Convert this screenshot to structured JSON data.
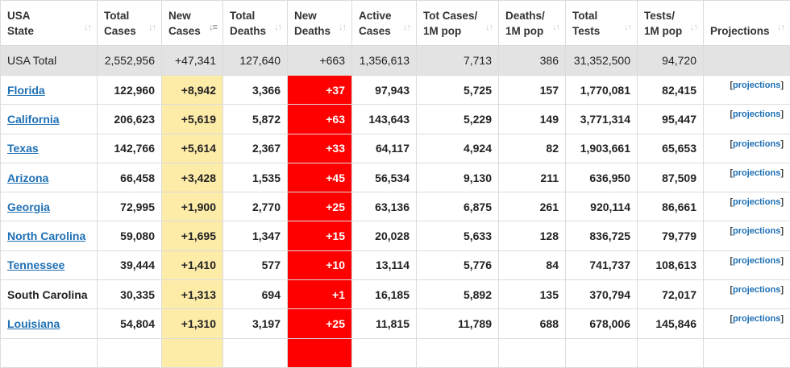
{
  "headers": [
    {
      "line1": "USA",
      "line2": "State",
      "sort": "↓↑",
      "active": false
    },
    {
      "line1": "Total",
      "line2": "Cases",
      "sort": "↓↑",
      "active": false
    },
    {
      "line1": "New",
      "line2": "Cases",
      "sort": "↓≡",
      "active": true
    },
    {
      "line1": "Total",
      "line2": "Deaths",
      "sort": "↓↑",
      "active": false
    },
    {
      "line1": "New",
      "line2": "Deaths",
      "sort": "↓↑",
      "active": false
    },
    {
      "line1": "Active",
      "line2": "Cases",
      "sort": "↓↑",
      "active": false
    },
    {
      "line1": "Tot Cases/",
      "line2": "1M pop",
      "sort": "↓↑",
      "active": false
    },
    {
      "line1": "Deaths/",
      "line2": "1M pop",
      "sort": "↓↑",
      "active": false
    },
    {
      "line1": "Total",
      "line2": "Tests",
      "sort": "↓↑",
      "active": false
    },
    {
      "line1": "Tests/",
      "line2": "1M pop",
      "sort": "↓↑",
      "active": false
    },
    {
      "line1": "",
      "line2": "Projections",
      "sort": "↓↑",
      "active": false
    }
  ],
  "total": {
    "state": "USA Total",
    "total_cases": "2,552,956",
    "new_cases": "+47,341",
    "total_deaths": "127,640",
    "new_deaths": "+663",
    "active_cases": "1,356,613",
    "cases_per_1m": "7,713",
    "deaths_per_1m": "386",
    "total_tests": "31,352,500",
    "tests_per_1m": "94,720"
  },
  "rows": [
    {
      "state": "Florida",
      "link": true,
      "total_cases": "122,960",
      "new_cases": "+8,942",
      "total_deaths": "3,366",
      "new_deaths": "+37",
      "active_cases": "97,943",
      "cases_per_1m": "5,725",
      "deaths_per_1m": "157",
      "total_tests": "1,770,081",
      "tests_per_1m": "82,415",
      "proj": "projections"
    },
    {
      "state": "California",
      "link": true,
      "total_cases": "206,623",
      "new_cases": "+5,619",
      "total_deaths": "5,872",
      "new_deaths": "+63",
      "active_cases": "143,643",
      "cases_per_1m": "5,229",
      "deaths_per_1m": "149",
      "total_tests": "3,771,314",
      "tests_per_1m": "95,447",
      "proj": "projections"
    },
    {
      "state": "Texas",
      "link": true,
      "total_cases": "142,766",
      "new_cases": "+5,614",
      "total_deaths": "2,367",
      "new_deaths": "+33",
      "active_cases": "64,117",
      "cases_per_1m": "4,924",
      "deaths_per_1m": "82",
      "total_tests": "1,903,661",
      "tests_per_1m": "65,653",
      "proj": "projections"
    },
    {
      "state": "Arizona",
      "link": true,
      "total_cases": "66,458",
      "new_cases": "+3,428",
      "total_deaths": "1,535",
      "new_deaths": "+45",
      "active_cases": "56,534",
      "cases_per_1m": "9,130",
      "deaths_per_1m": "211",
      "total_tests": "636,950",
      "tests_per_1m": "87,509",
      "proj": "projections"
    },
    {
      "state": "Georgia",
      "link": true,
      "total_cases": "72,995",
      "new_cases": "+1,900",
      "total_deaths": "2,770",
      "new_deaths": "+25",
      "active_cases": "63,136",
      "cases_per_1m": "6,875",
      "deaths_per_1m": "261",
      "total_tests": "920,114",
      "tests_per_1m": "86,661",
      "proj": "projections"
    },
    {
      "state": "North Carolina",
      "link": true,
      "total_cases": "59,080",
      "new_cases": "+1,695",
      "total_deaths": "1,347",
      "new_deaths": "+15",
      "active_cases": "20,028",
      "cases_per_1m": "5,633",
      "deaths_per_1m": "128",
      "total_tests": "836,725",
      "tests_per_1m": "79,779",
      "proj": "projections"
    },
    {
      "state": "Tennessee",
      "link": true,
      "total_cases": "39,444",
      "new_cases": "+1,410",
      "total_deaths": "577",
      "new_deaths": "+10",
      "active_cases": "13,114",
      "cases_per_1m": "5,776",
      "deaths_per_1m": "84",
      "total_tests": "741,737",
      "tests_per_1m": "108,613",
      "proj": "projections"
    },
    {
      "state": "South Carolina",
      "link": false,
      "total_cases": "30,335",
      "new_cases": "+1,313",
      "total_deaths": "694",
      "new_deaths": "+1",
      "active_cases": "16,185",
      "cases_per_1m": "5,892",
      "deaths_per_1m": "135",
      "total_tests": "370,794",
      "tests_per_1m": "72,017",
      "proj": "projections"
    },
    {
      "state": "Louisiana",
      "link": true,
      "total_cases": "54,804",
      "new_cases": "+1,310",
      "total_deaths": "3,197",
      "new_deaths": "+25",
      "active_cases": "11,815",
      "cases_per_1m": "11,789",
      "deaths_per_1m": "688",
      "total_tests": "678,006",
      "tests_per_1m": "145,846",
      "proj": "projections"
    },
    {
      "state": "",
      "link": false,
      "total_cases": "",
      "new_cases": "",
      "total_deaths": "",
      "new_deaths": "",
      "active_cases": "",
      "cases_per_1m": "",
      "deaths_per_1m": "",
      "total_tests": "",
      "tests_per_1m": "",
      "proj": ""
    }
  ],
  "colors": {
    "new_cases_bg": "#fdeba8",
    "new_deaths_bg": "#ff0000",
    "link": "#1d6fb4",
    "total_row_bg": "#e3e3e3"
  }
}
